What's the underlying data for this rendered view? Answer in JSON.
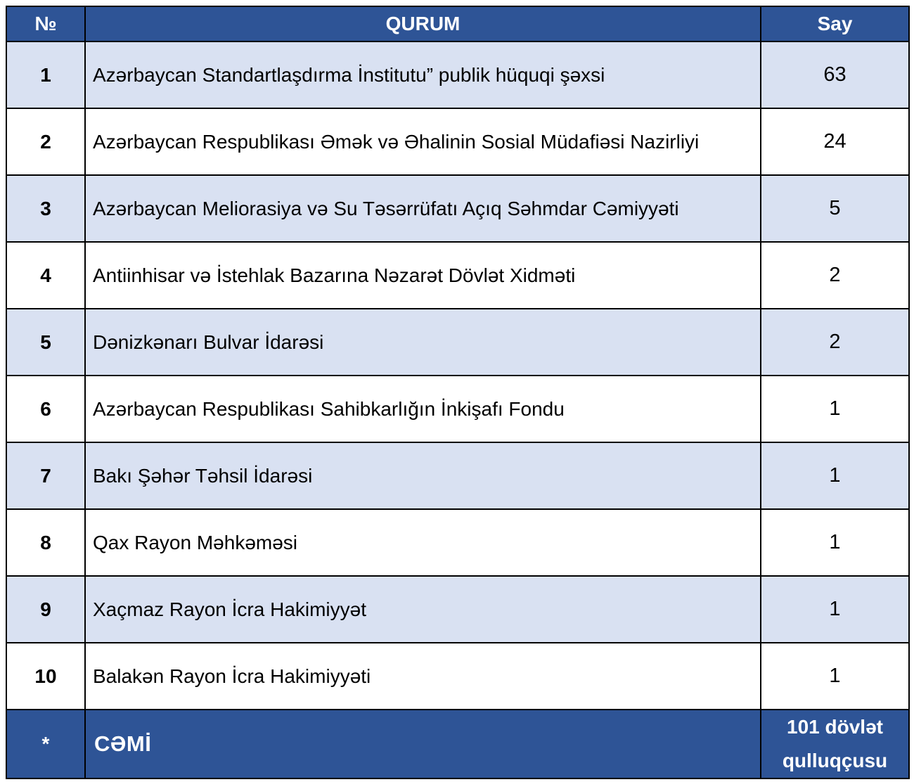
{
  "table": {
    "columns": {
      "num": "№",
      "qurum": "QURUM",
      "say": "Say"
    },
    "rows": [
      {
        "num": "1",
        "qurum": "Azərbaycan Standartlaşdırma İnstitutu” publik hüquqi şəxsi",
        "say": "63"
      },
      {
        "num": "2",
        "qurum": "Azərbaycan Respublikası Əmək və Əhalinin Sosial Müdafiəsi Nazirliyi",
        "say": "24"
      },
      {
        "num": "3",
        "qurum": "Azərbaycan Meliorasiya və Su Təsərrüfatı Açıq Səhmdar Cəmiyyəti",
        "say": "5"
      },
      {
        "num": "4",
        "qurum": "Antiinhisar və İstehlak Bazarına Nəzarət Dövlət Xidməti",
        "say": "2"
      },
      {
        "num": "5",
        "qurum": "Dənizkənarı Bulvar İdarəsi",
        "say": "2"
      },
      {
        "num": "6",
        "qurum": "Azərbaycan Respublikası Sahibkarlığın İnkişafı Fondu",
        "say": "1"
      },
      {
        "num": "7",
        "qurum": "Bakı Şəhər Təhsil İdarəsi",
        "say": "1"
      },
      {
        "num": "8",
        "qurum": "Qax Rayon Məhkəməsi",
        "say": "1"
      },
      {
        "num": "9",
        "qurum": "Xaçmaz Rayon İcra Hakimiyyət",
        "say": "1"
      },
      {
        "num": "10",
        "qurum": "Balakən Rayon İcra Hakimiyyəti",
        "say": "1"
      }
    ],
    "footer": {
      "num": "*",
      "qurum": "CƏMİ",
      "say": "101 dövlət qulluqçusu"
    },
    "colors": {
      "header_bg": "#2E5496",
      "footer_bg": "#2E5496",
      "row_alt_bg": "#D9E1F2",
      "row_bg": "#FFFFFF",
      "header_text": "#FFFFFF",
      "body_text": "#000000",
      "border": "#000000"
    }
  },
  "chart_data": {
    "type": "table",
    "title": "",
    "categories": [
      "Azərbaycan Standartlaşdırma İnstitutu” publik hüquqi şəxsi",
      "Azərbaycan Respublikası Əmək və Əhalinin Sosial Müdafiəsi Nazirliyi",
      "Azərbaycan Meliorasiya və Su Təsərrüfatı Açıq Səhmdar Cəmiyyəti",
      "Antiinhisar və İstehlak Bazarına Nəzarət Dövlət Xidməti",
      "Dənizkənarı Bulvar İdarəsi",
      "Azərbaycan Respublikası Sahibkarlığın İnkişafı Fondu",
      "Bakı Şəhər Təhsil İdarəsi",
      "Qax Rayon Məhkəməsi",
      "Xaçmaz Rayon İcra Hakimiyyət",
      "Balakən Rayon İcra Hakimiyyəti"
    ],
    "values": [
      63,
      24,
      5,
      2,
      2,
      1,
      1,
      1,
      1,
      1
    ],
    "total_label": "101 dövlət qulluqçusu"
  }
}
